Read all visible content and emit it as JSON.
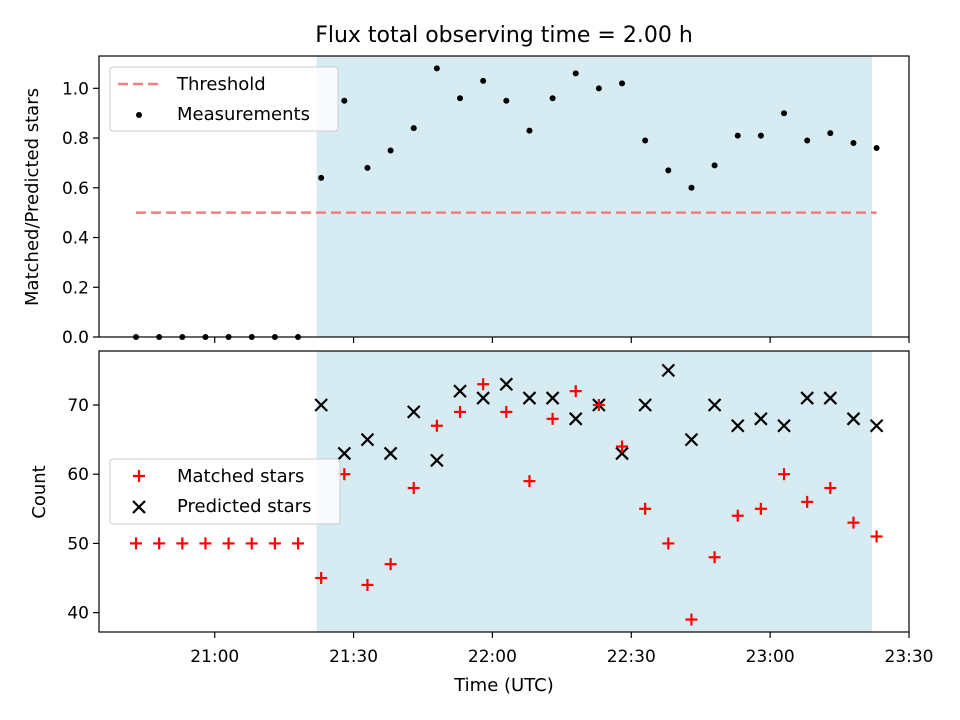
{
  "chart_data": {
    "title": "Flux total observing time = 2.00 h",
    "xlabel": "Time (UTC)",
    "x_axis": {
      "type": "time",
      "range": [
        "20:35",
        "23:30"
      ],
      "tick_times": [
        "21:00",
        "21:30",
        "22:00",
        "22:30",
        "23:00",
        "23:30"
      ],
      "tick_labels": [
        "21:00",
        "21:30",
        "22:00",
        "22:30",
        "23:00",
        "23:30"
      ]
    },
    "observing_window": {
      "start": "21:22",
      "end": "23:22",
      "color": "#add8e6"
    },
    "times": [
      "20:43",
      "20:48",
      "20:53",
      "20:58",
      "21:03",
      "21:08",
      "21:13",
      "21:18",
      "21:23",
      "21:28",
      "21:33",
      "21:38",
      "21:43",
      "21:48",
      "21:53",
      "21:58",
      "22:03",
      "22:08",
      "22:13",
      "22:18",
      "22:23",
      "22:28",
      "22:33",
      "22:38",
      "22:43",
      "22:48",
      "22:53",
      "22:58",
      "23:03",
      "23:08",
      "23:13",
      "23:18",
      "23:23"
    ],
    "charts": [
      {
        "type": "scatter",
        "ylabel": "Matched/Predicted stars",
        "ylim": [
          0,
          1.13
        ],
        "yticks": [
          0.0,
          0.2,
          0.4,
          0.6,
          0.8,
          1.0
        ],
        "ytick_labels": [
          "0.0",
          "0.2",
          "0.4",
          "0.6",
          "0.8",
          "1.0"
        ],
        "legend_position": "upper-left",
        "threshold": {
          "name": "Threshold",
          "value": 0.5,
          "color": "#f08080",
          "start": "20:43",
          "end": "23:23"
        },
        "series": [
          {
            "name": "Measurements",
            "marker": "dot",
            "color": "#000000",
            "x": [
              "20:43",
              "20:48",
              "20:53",
              "20:58",
              "21:03",
              "21:08",
              "21:13",
              "21:18",
              "21:23",
              "21:28",
              "21:33",
              "21:38",
              "21:43",
              "21:48",
              "21:53",
              "21:58",
              "22:03",
              "22:08",
              "22:13",
              "22:18",
              "22:23",
              "22:28",
              "22:33",
              "22:38",
              "22:43",
              "22:48",
              "22:53",
              "22:58",
              "23:03",
              "23:08",
              "23:13",
              "23:18",
              "23:23"
            ],
            "values": [
              0,
              0,
              0,
              0,
              0,
              0,
              0,
              0,
              0.64,
              0.95,
              0.68,
              0.75,
              0.84,
              1.08,
              0.96,
              1.03,
              0.95,
              0.83,
              0.96,
              1.06,
              1.0,
              1.02,
              0.79,
              0.67,
              0.6,
              0.69,
              0.81,
              0.81,
              0.9,
              0.79,
              0.82,
              0.78,
              0.76
            ]
          }
        ]
      },
      {
        "type": "scatter",
        "ylabel": "Count",
        "ylim": [
          37.2,
          77.8
        ],
        "yticks": [
          40,
          50,
          60,
          70
        ],
        "ytick_labels": [
          "40",
          "50",
          "60",
          "70"
        ],
        "legend_position": "center-left",
        "series": [
          {
            "name": "Matched stars",
            "marker": "plus",
            "color": "#ff0000",
            "x": [
              "20:43",
              "20:48",
              "20:53",
              "20:58",
              "21:03",
              "21:08",
              "21:13",
              "21:18",
              "21:23",
              "21:28",
              "21:33",
              "21:38",
              "21:43",
              "21:48",
              "21:53",
              "21:58",
              "22:03",
              "22:08",
              "22:13",
              "22:18",
              "22:23",
              "22:28",
              "22:33",
              "22:38",
              "22:43",
              "22:48",
              "22:53",
              "22:58",
              "23:03",
              "23:08",
              "23:13",
              "23:18",
              "23:23"
            ],
            "values": [
              50,
              50,
              50,
              50,
              50,
              50,
              50,
              50,
              45,
              60,
              44,
              47,
              58,
              67,
              69,
              73,
              69,
              59,
              68,
              72,
              70,
              64,
              55,
              50,
              39,
              48,
              54,
              55,
              60,
              56,
              58,
              53,
              51
            ]
          },
          {
            "name": "Predicted stars",
            "marker": "x",
            "color": "#000000",
            "x": [
              "21:23",
              "21:28",
              "21:33",
              "21:38",
              "21:43",
              "21:48",
              "21:53",
              "21:58",
              "22:03",
              "22:08",
              "22:13",
              "22:18",
              "22:23",
              "22:28",
              "22:33",
              "22:38",
              "22:43",
              "22:48",
              "22:53",
              "22:58",
              "23:03",
              "23:08",
              "23:13",
              "23:18",
              "23:23"
            ],
            "values": [
              70,
              63,
              65,
              63,
              69,
              62,
              72,
              71,
              73,
              71,
              71,
              68,
              70,
              63,
              70,
              75,
              65,
              70,
              67,
              68,
              67,
              71,
              71,
              68,
              67
            ]
          }
        ]
      }
    ]
  }
}
